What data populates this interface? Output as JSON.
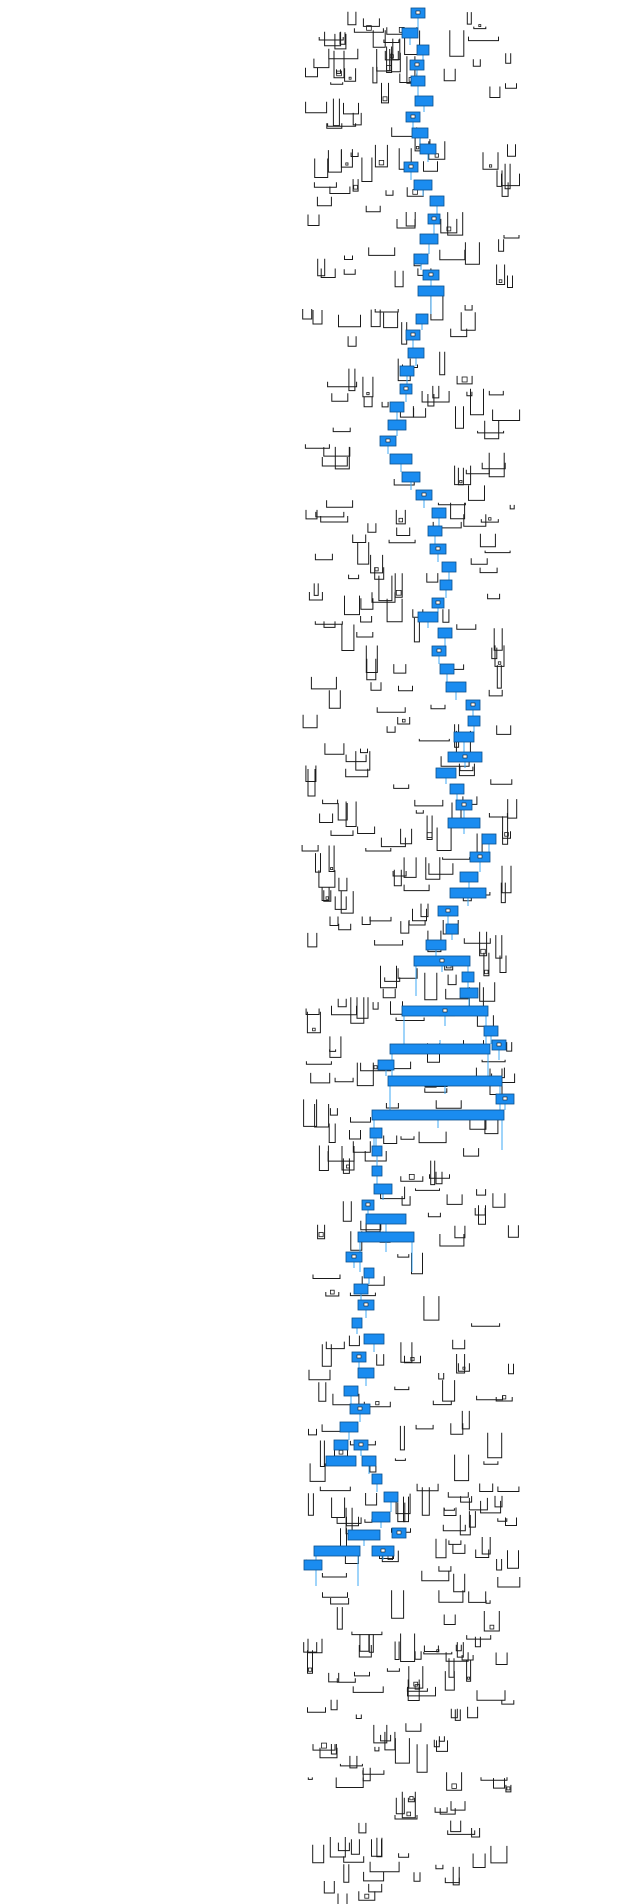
{
  "diagram": {
    "type": "icicle-path-highlight",
    "colors": {
      "background": "#ffffff",
      "highlight_fill": "#1a8cf0",
      "highlight_stroke": "#0a4f8c",
      "connector": "#3fa9f5",
      "outline": "#1a1a1a"
    },
    "labels": []
  }
}
